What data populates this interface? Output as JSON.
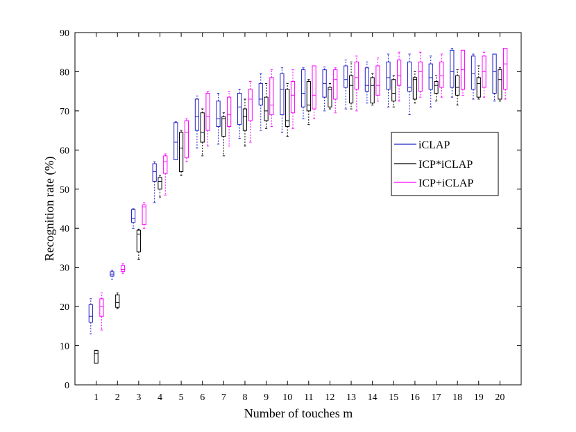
{
  "chart_data": {
    "type": "box",
    "xlabel": "Number of touches m",
    "ylabel": "Recognition rate (%)",
    "ylim": [
      0,
      90
    ],
    "yticks": [
      0,
      10,
      20,
      30,
      40,
      50,
      60,
      70,
      80,
      90
    ],
    "categories": [
      "1",
      "2",
      "3",
      "4",
      "5",
      "6",
      "7",
      "8",
      "9",
      "10",
      "11",
      "12",
      "13",
      "14",
      "15",
      "16",
      "17",
      "18",
      "19",
      "20"
    ],
    "legend_position": "right",
    "grid": false,
    "series": [
      {
        "name": "iCLAP",
        "color": "#2020c8",
        "boxes": [
          [
            13,
            16,
            17.5,
            20.5,
            22
          ],
          [
            27,
            27.8,
            28.3,
            28.9,
            29.3
          ],
          [
            40,
            41.5,
            42.5,
            44.8,
            45
          ],
          [
            46.5,
            52,
            54.5,
            56.5,
            57
          ],
          [
            57.5,
            57.5,
            62,
            67,
            67.2
          ],
          [
            60.5,
            65,
            68.5,
            73,
            73.8
          ],
          [
            61.5,
            66,
            68,
            72.5,
            74.5
          ],
          [
            63,
            66.5,
            71,
            74.5,
            75.5
          ],
          [
            65,
            71.5,
            73,
            77,
            79.5
          ],
          [
            64.5,
            69,
            75.5,
            79.5,
            81
          ],
          [
            68,
            71,
            74.5,
            80.5,
            81
          ],
          [
            70,
            73.5,
            77,
            80.5,
            81.2
          ],
          [
            70.5,
            76,
            78,
            81.5,
            83
          ],
          [
            72,
            75,
            76.5,
            81,
            82.5
          ],
          [
            71,
            75.5,
            78.5,
            82.5,
            84.5
          ],
          [
            69,
            75,
            76,
            82.5,
            84.5
          ],
          [
            71,
            75.5,
            78.5,
            82,
            84
          ],
          [
            73.5,
            76,
            80,
            85.5,
            86
          ],
          [
            73,
            75.5,
            79.5,
            84,
            84.5
          ],
          [
            72.5,
            74.5,
            80,
            84.5,
            84.5
          ]
        ]
      },
      {
        "name": "ICP*iCLAP",
        "color": "#000000",
        "boxes": [
          [
            5.5,
            5.5,
            8,
            8.8,
            8.8
          ],
          [
            19.5,
            19.8,
            21,
            23,
            23.5
          ],
          [
            32,
            34,
            38.5,
            39.5,
            39.8
          ],
          [
            48,
            50,
            52,
            53,
            53.5
          ],
          [
            53.5,
            54.5,
            60.5,
            64.5,
            65
          ],
          [
            58.5,
            62,
            64.5,
            69.5,
            70.5
          ],
          [
            58.5,
            63.5,
            68,
            68.5,
            69.5
          ],
          [
            61,
            65,
            68.5,
            70.5,
            73
          ],
          [
            65.5,
            67.5,
            70,
            73.5,
            77
          ],
          [
            63.5,
            66,
            67.5,
            75.5,
            77
          ],
          [
            66.5,
            70,
            71.5,
            77.5,
            78
          ],
          [
            70.5,
            71,
            75.5,
            76,
            77
          ],
          [
            70.5,
            72,
            76.5,
            79,
            82.5
          ],
          [
            71.5,
            72,
            76.5,
            78.5,
            79.5
          ],
          [
            71,
            72.5,
            74.5,
            78,
            79
          ],
          [
            72,
            73,
            78,
            78.5,
            80
          ],
          [
            72.5,
            74.5,
            76.5,
            77.5,
            79
          ],
          [
            71.5,
            74,
            76,
            79,
            80.5
          ],
          [
            73,
            73.5,
            77,
            78.5,
            81.5
          ],
          [
            72.5,
            73,
            78,
            80.5,
            81
          ]
        ]
      },
      {
        "name": "ICP+iCLAP",
        "color": "#ff00ff",
        "boxes": [
          [
            14,
            17.5,
            20,
            22,
            23.5
          ],
          [
            28.5,
            29,
            29.5,
            30.5,
            31
          ],
          [
            40,
            41,
            45.5,
            46,
            46.5
          ],
          [
            48.5,
            54,
            57,
            58.5,
            59
          ],
          [
            57,
            58,
            64.5,
            67.5,
            68
          ],
          [
            61,
            65,
            68.5,
            74.5,
            75
          ],
          [
            61,
            66,
            69,
            73.5,
            75
          ],
          [
            62,
            67.5,
            73,
            75.5,
            77.5
          ],
          [
            66,
            69,
            71.5,
            78.5,
            80.5
          ],
          [
            65.5,
            69.5,
            74,
            77.5,
            80.5
          ],
          [
            68,
            70.5,
            74,
            81.5,
            81.5
          ],
          [
            69.5,
            73,
            78,
            80.5,
            81
          ],
          [
            70,
            75.5,
            78.5,
            82.5,
            84
          ],
          [
            72.5,
            74,
            76.5,
            81.5,
            83.5
          ],
          [
            72.5,
            76.5,
            79,
            83,
            85
          ],
          [
            73.5,
            75,
            80,
            82.5,
            85
          ],
          [
            73.5,
            76,
            79,
            82.5,
            84.5
          ],
          [
            74,
            75.5,
            80.5,
            85.5,
            85.5
          ],
          [
            73.5,
            76,
            80,
            84,
            85
          ],
          [
            73,
            75.5,
            82,
            86,
            86
          ]
        ]
      }
    ]
  }
}
